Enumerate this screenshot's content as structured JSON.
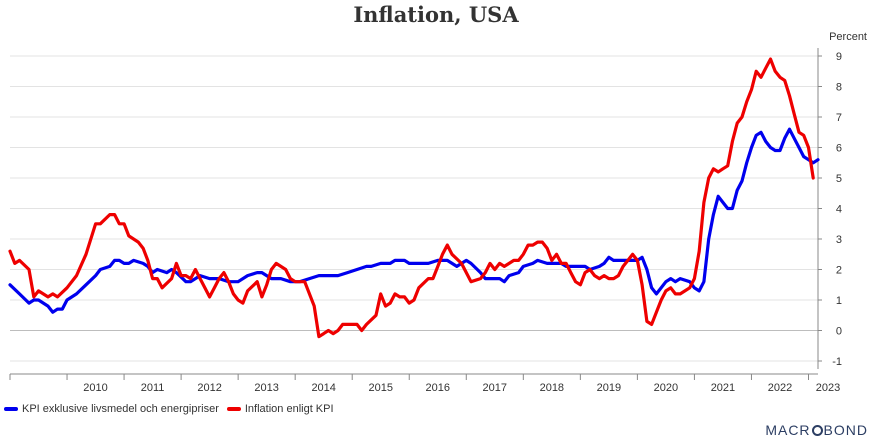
{
  "chart_data": {
    "type": "line",
    "title": "Inflation, USA",
    "ylabel": "Percent",
    "ylim": [
      -1,
      9
    ],
    "y_ticks": [
      "-1",
      "0",
      "1",
      "2",
      "3",
      "4",
      "5",
      "6",
      "7",
      "8",
      "9"
    ],
    "x_ticks": [
      "2010",
      "2011",
      "2012",
      "2013",
      "2014",
      "2015",
      "2016",
      "2017",
      "2018",
      "2019",
      "2020",
      "2021",
      "2022",
      "2023"
    ],
    "x_range": [
      "2009-01",
      "2023-03"
    ],
    "grid": true,
    "legend_position": "bottom-left",
    "series": [
      {
        "name": "KPI exklusive livsmedel och energipriser",
        "color": "#0000ee",
        "points": [
          [
            "2009-01",
            1.5
          ],
          [
            "2009-03",
            1.2
          ],
          [
            "2009-05",
            0.9
          ],
          [
            "2009-06",
            1.0
          ],
          [
            "2009-07",
            1.0
          ],
          [
            "2009-09",
            0.8
          ],
          [
            "2009-10",
            0.6
          ],
          [
            "2009-11",
            0.7
          ],
          [
            "2009-12",
            0.7
          ],
          [
            "2010-01",
            1.0
          ],
          [
            "2010-03",
            1.2
          ],
          [
            "2010-05",
            1.5
          ],
          [
            "2010-07",
            1.8
          ],
          [
            "2010-08",
            2.0
          ],
          [
            "2010-10",
            2.1
          ],
          [
            "2010-11",
            2.3
          ],
          [
            "2010-12",
            2.3
          ],
          [
            "2011-01",
            2.2
          ],
          [
            "2011-02",
            2.2
          ],
          [
            "2011-03",
            2.3
          ],
          [
            "2011-05",
            2.2
          ],
          [
            "2011-06",
            2.1
          ],
          [
            "2011-07",
            1.9
          ],
          [
            "2011-08",
            2.0
          ],
          [
            "2011-10",
            1.9
          ],
          [
            "2011-11",
            2.0
          ],
          [
            "2011-12",
            1.9
          ],
          [
            "2012-02",
            1.6
          ],
          [
            "2012-03",
            1.6
          ],
          [
            "2012-05",
            1.8
          ],
          [
            "2012-07",
            1.7
          ],
          [
            "2012-09",
            1.7
          ],
          [
            "2012-11",
            1.6
          ],
          [
            "2013-01",
            1.6
          ],
          [
            "2013-03",
            1.8
          ],
          [
            "2013-05",
            1.9
          ],
          [
            "2013-06",
            1.9
          ],
          [
            "2013-08",
            1.7
          ],
          [
            "2013-10",
            1.7
          ],
          [
            "2013-12",
            1.6
          ],
          [
            "2014-02",
            1.6
          ],
          [
            "2014-04",
            1.7
          ],
          [
            "2014-06",
            1.8
          ],
          [
            "2014-08",
            1.8
          ],
          [
            "2014-10",
            1.8
          ],
          [
            "2014-12",
            1.9
          ],
          [
            "2015-02",
            2.0
          ],
          [
            "2015-04",
            2.1
          ],
          [
            "2015-05",
            2.1
          ],
          [
            "2015-07",
            2.2
          ],
          [
            "2015-09",
            2.2
          ],
          [
            "2015-10",
            2.3
          ],
          [
            "2015-12",
            2.3
          ],
          [
            "2016-01",
            2.2
          ],
          [
            "2016-03",
            2.2
          ],
          [
            "2016-05",
            2.2
          ],
          [
            "2016-07",
            2.3
          ],
          [
            "2016-09",
            2.3
          ],
          [
            "2016-11",
            2.1
          ],
          [
            "2017-01",
            2.3
          ],
          [
            "2017-02",
            2.2
          ],
          [
            "2017-04",
            1.9
          ],
          [
            "2017-05",
            1.7
          ],
          [
            "2017-06",
            1.7
          ],
          [
            "2017-08",
            1.7
          ],
          [
            "2017-09",
            1.6
          ],
          [
            "2017-10",
            1.8
          ],
          [
            "2017-12",
            1.9
          ],
          [
            "2018-01",
            2.1
          ],
          [
            "2018-03",
            2.2
          ],
          [
            "2018-04",
            2.3
          ],
          [
            "2018-06",
            2.2
          ],
          [
            "2018-07",
            2.2
          ],
          [
            "2018-09",
            2.2
          ],
          [
            "2018-10",
            2.1
          ],
          [
            "2018-12",
            2.1
          ],
          [
            "2019-02",
            2.1
          ],
          [
            "2019-03",
            2.0
          ],
          [
            "2019-05",
            2.1
          ],
          [
            "2019-06",
            2.2
          ],
          [
            "2019-07",
            2.4
          ],
          [
            "2019-08",
            2.3
          ],
          [
            "2019-10",
            2.3
          ],
          [
            "2019-12",
            2.3
          ],
          [
            "2020-01",
            2.3
          ],
          [
            "2020-02",
            2.4
          ],
          [
            "2020-03",
            2.0
          ],
          [
            "2020-04",
            1.4
          ],
          [
            "2020-05",
            1.2
          ],
          [
            "2020-07",
            1.6
          ],
          [
            "2020-08",
            1.7
          ],
          [
            "2020-09",
            1.6
          ],
          [
            "2020-10",
            1.7
          ],
          [
            "2020-12",
            1.6
          ],
          [
            "2021-01",
            1.4
          ],
          [
            "2021-02",
            1.3
          ],
          [
            "2021-03",
            1.6
          ],
          [
            "2021-04",
            3.0
          ],
          [
            "2021-05",
            3.8
          ],
          [
            "2021-06",
            4.4
          ],
          [
            "2021-07",
            4.2
          ],
          [
            "2021-08",
            4.0
          ],
          [
            "2021-09",
            4.0
          ],
          [
            "2021-10",
            4.6
          ],
          [
            "2021-11",
            4.9
          ],
          [
            "2021-12",
            5.5
          ],
          [
            "2022-01",
            6.0
          ],
          [
            "2022-02",
            6.4
          ],
          [
            "2022-03",
            6.5
          ],
          [
            "2022-04",
            6.2
          ],
          [
            "2022-05",
            6.0
          ],
          [
            "2022-06",
            5.9
          ],
          [
            "2022-07",
            5.9
          ],
          [
            "2022-08",
            6.3
          ],
          [
            "2022-09",
            6.6
          ],
          [
            "2022-10",
            6.3
          ],
          [
            "2022-11",
            6.0
          ],
          [
            "2022-12",
            5.7
          ],
          [
            "2023-01",
            5.6
          ],
          [
            "2023-02",
            5.5
          ],
          [
            "2023-03",
            5.6
          ]
        ]
      },
      {
        "name": "Inflation enligt KPI",
        "color": "#ee0000",
        "points": [
          [
            "2009-01",
            2.6
          ],
          [
            "2009-02",
            2.2
          ],
          [
            "2009-03",
            2.3
          ],
          [
            "2009-05",
            2.0
          ],
          [
            "2009-06",
            1.1
          ],
          [
            "2009-07",
            1.3
          ],
          [
            "2009-09",
            1.1
          ],
          [
            "2009-10",
            1.2
          ],
          [
            "2009-11",
            1.1
          ],
          [
            "2010-01",
            1.4
          ],
          [
            "2010-03",
            1.8
          ],
          [
            "2010-05",
            2.5
          ],
          [
            "2010-07",
            3.5
          ],
          [
            "2010-08",
            3.5
          ],
          [
            "2010-10",
            3.8
          ],
          [
            "2010-11",
            3.8
          ],
          [
            "2010-12",
            3.5
          ],
          [
            "2011-01",
            3.5
          ],
          [
            "2011-02",
            3.1
          ],
          [
            "2011-04",
            2.9
          ],
          [
            "2011-05",
            2.7
          ],
          [
            "2011-06",
            2.3
          ],
          [
            "2011-07",
            1.7
          ],
          [
            "2011-08",
            1.7
          ],
          [
            "2011-09",
            1.4
          ],
          [
            "2011-11",
            1.7
          ],
          [
            "2011-12",
            2.2
          ],
          [
            "2012-01",
            1.8
          ],
          [
            "2012-02",
            1.8
          ],
          [
            "2012-03",
            1.7
          ],
          [
            "2012-04",
            2.0
          ],
          [
            "2012-05",
            1.7
          ],
          [
            "2012-07",
            1.1
          ],
          [
            "2012-08",
            1.4
          ],
          [
            "2012-09",
            1.7
          ],
          [
            "2012-10",
            1.9
          ],
          [
            "2012-11",
            1.6
          ],
          [
            "2012-12",
            1.2
          ],
          [
            "2013-01",
            1.0
          ],
          [
            "2013-02",
            0.9
          ],
          [
            "2013-03",
            1.3
          ],
          [
            "2013-05",
            1.6
          ],
          [
            "2013-06",
            1.1
          ],
          [
            "2013-07",
            1.5
          ],
          [
            "2013-08",
            2.0
          ],
          [
            "2013-09",
            2.2
          ],
          [
            "2013-11",
            2.0
          ],
          [
            "2013-12",
            1.7
          ],
          [
            "2014-01",
            1.6
          ],
          [
            "2014-03",
            1.6
          ],
          [
            "2014-05",
            0.8
          ],
          [
            "2014-06",
            -0.2
          ],
          [
            "2014-07",
            -0.1
          ],
          [
            "2014-08",
            0.0
          ],
          [
            "2014-09",
            -0.1
          ],
          [
            "2014-10",
            0.0
          ],
          [
            "2014-11",
            0.2
          ],
          [
            "2015-02",
            0.2
          ],
          [
            "2015-03",
            0.0
          ],
          [
            "2015-04",
            0.2
          ],
          [
            "2015-06",
            0.5
          ],
          [
            "2015-07",
            1.2
          ],
          [
            "2015-08",
            0.8
          ],
          [
            "2015-09",
            0.9
          ],
          [
            "2015-10",
            1.2
          ],
          [
            "2015-11",
            1.1
          ],
          [
            "2015-12",
            1.1
          ],
          [
            "2016-01",
            0.9
          ],
          [
            "2016-02",
            1.0
          ],
          [
            "2016-03",
            1.4
          ],
          [
            "2016-05",
            1.7
          ],
          [
            "2016-06",
            1.7
          ],
          [
            "2016-07",
            2.1
          ],
          [
            "2016-08",
            2.5
          ],
          [
            "2016-09",
            2.8
          ],
          [
            "2016-10",
            2.5
          ],
          [
            "2016-12",
            2.2
          ],
          [
            "2017-01",
            1.9
          ],
          [
            "2017-02",
            1.6
          ],
          [
            "2017-04",
            1.7
          ],
          [
            "2017-05",
            1.9
          ],
          [
            "2017-06",
            2.2
          ],
          [
            "2017-07",
            2.0
          ],
          [
            "2017-08",
            2.2
          ],
          [
            "2017-09",
            2.1
          ],
          [
            "2017-10",
            2.2
          ],
          [
            "2017-11",
            2.3
          ],
          [
            "2017-12",
            2.3
          ],
          [
            "2018-01",
            2.5
          ],
          [
            "2018-02",
            2.8
          ],
          [
            "2018-03",
            2.8
          ],
          [
            "2018-04",
            2.9
          ],
          [
            "2018-05",
            2.9
          ],
          [
            "2018-06",
            2.7
          ],
          [
            "2018-07",
            2.3
          ],
          [
            "2018-08",
            2.5
          ],
          [
            "2018-09",
            2.2
          ],
          [
            "2018-10",
            2.2
          ],
          [
            "2018-11",
            1.9
          ],
          [
            "2018-12",
            1.6
          ],
          [
            "2019-01",
            1.5
          ],
          [
            "2019-02",
            1.9
          ],
          [
            "2019-03",
            2.0
          ],
          [
            "2019-04",
            1.8
          ],
          [
            "2019-05",
            1.7
          ],
          [
            "2019-06",
            1.8
          ],
          [
            "2019-07",
            1.7
          ],
          [
            "2019-08",
            1.7
          ],
          [
            "2019-09",
            1.8
          ],
          [
            "2019-10",
            2.1
          ],
          [
            "2019-11",
            2.3
          ],
          [
            "2019-12",
            2.5
          ],
          [
            "2020-01",
            2.3
          ],
          [
            "2020-02",
            1.5
          ],
          [
            "2020-03",
            0.3
          ],
          [
            "2020-04",
            0.2
          ],
          [
            "2020-05",
            0.6
          ],
          [
            "2020-06",
            1.0
          ],
          [
            "2020-07",
            1.3
          ],
          [
            "2020-08",
            1.4
          ],
          [
            "2020-09",
            1.2
          ],
          [
            "2020-10",
            1.2
          ],
          [
            "2020-11",
            1.3
          ],
          [
            "2020-12",
            1.4
          ],
          [
            "2021-01",
            1.7
          ],
          [
            "2021-02",
            2.6
          ],
          [
            "2021-03",
            4.2
          ],
          [
            "2021-04",
            5.0
          ],
          [
            "2021-05",
            5.3
          ],
          [
            "2021-06",
            5.2
          ],
          [
            "2021-07",
            5.3
          ],
          [
            "2021-08",
            5.4
          ],
          [
            "2021-09",
            6.2
          ],
          [
            "2021-10",
            6.8
          ],
          [
            "2021-11",
            7.0
          ],
          [
            "2021-12",
            7.5
          ],
          [
            "2022-01",
            7.9
          ],
          [
            "2022-02",
            8.5
          ],
          [
            "2022-03",
            8.3
          ],
          [
            "2022-04",
            8.6
          ],
          [
            "2022-05",
            8.9
          ],
          [
            "2022-06",
            8.5
          ],
          [
            "2022-07",
            8.3
          ],
          [
            "2022-08",
            8.2
          ],
          [
            "2022-09",
            7.7
          ],
          [
            "2022-10",
            7.1
          ],
          [
            "2022-11",
            6.5
          ],
          [
            "2022-12",
            6.4
          ],
          [
            "2023-01",
            6.0
          ],
          [
            "2023-02",
            5.0
          ]
        ]
      }
    ]
  },
  "brand": "MACRBOND"
}
